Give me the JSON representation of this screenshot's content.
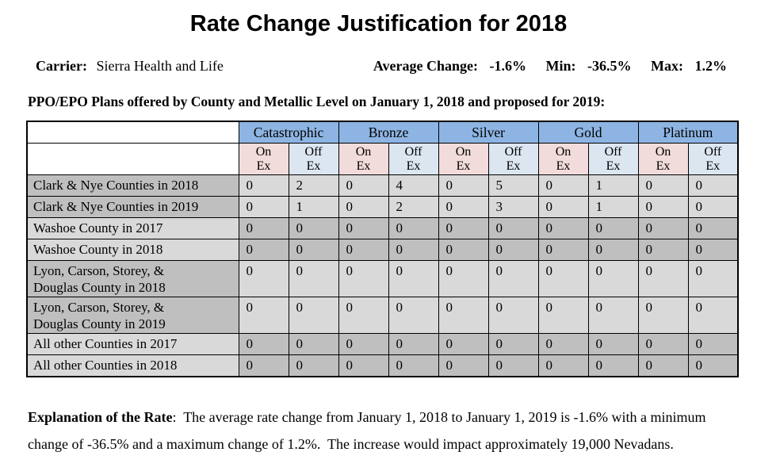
{
  "title": "Rate Change Justification for 2018",
  "carrier": {
    "label": "Carrier:",
    "value": "Sierra Health and Life"
  },
  "stats": {
    "average_label": "Average Change:",
    "average_value": "-1.6%",
    "min_label": "Min:",
    "min_value": "-36.5%",
    "max_label": "Max:",
    "max_value": "1.2%"
  },
  "table_caption": "PPO/EPO Plans offered by County and Metallic Level on January 1, 2018 and proposed for 2019:",
  "table": {
    "metal_levels": [
      "Catastrophic",
      "Bronze",
      "Silver",
      "Gold",
      "Platinum"
    ],
    "exchange_headers": [
      "On\nEx",
      "Off\nEx"
    ],
    "rows": [
      {
        "label": "Clark & Nye Counties in 2018",
        "values": [
          "0",
          "2",
          "0",
          "4",
          "0",
          "5",
          "0",
          "1",
          "0",
          "0"
        ],
        "shading": "dark-label"
      },
      {
        "label": "Clark & Nye Counties in 2019",
        "values": [
          "0",
          "1",
          "0",
          "2",
          "0",
          "3",
          "0",
          "1",
          "0",
          "0"
        ],
        "shading": "dark-label"
      },
      {
        "label": "Washoe County in 2017",
        "values": [
          "0",
          "0",
          "0",
          "0",
          "0",
          "0",
          "0",
          "0",
          "0",
          "0"
        ],
        "shading": "light-label"
      },
      {
        "label": "Washoe County in 2018",
        "values": [
          "0",
          "0",
          "0",
          "0",
          "0",
          "0",
          "0",
          "0",
          "0",
          "0"
        ],
        "shading": "light-label"
      },
      {
        "label": "Lyon, Carson, Storey, &\nDouglas County in 2018",
        "values": [
          "0",
          "0",
          "0",
          "0",
          "0",
          "0",
          "0",
          "0",
          "0",
          "0"
        ],
        "shading": "dark-label"
      },
      {
        "label": "Lyon, Carson, Storey, &\nDouglas County in 2019",
        "values": [
          "0",
          "0",
          "0",
          "0",
          "0",
          "0",
          "0",
          "0",
          "0",
          "0"
        ],
        "shading": "dark-label"
      },
      {
        "label": "All other Counties in 2017",
        "values": [
          "0",
          "0",
          "0",
          "0",
          "0",
          "0",
          "0",
          "0",
          "0",
          "0"
        ],
        "shading": "light-label"
      },
      {
        "label": "All other Counties in 2018",
        "values": [
          "0",
          "0",
          "0",
          "0",
          "0",
          "0",
          "0",
          "0",
          "0",
          "0"
        ],
        "shading": "light-label"
      }
    ]
  },
  "explanation": {
    "label": "Explanation of the Rate",
    "text": ":  The average rate change from January 1, 2018 to January 1, 2019 is -1.6% with a minimum change of -36.5% and a maximum change of 1.2%.  The increase would impact approximately 19,000 Nevadans."
  },
  "colors": {
    "metal_header_bg": "#8DB4E2",
    "on_ex_bg": "#F2DCDB",
    "off_ex_bg": "#DCE6F1",
    "dark_gray": "#BFBFBF",
    "light_gray": "#D9D9D9",
    "border": "#000000"
  }
}
